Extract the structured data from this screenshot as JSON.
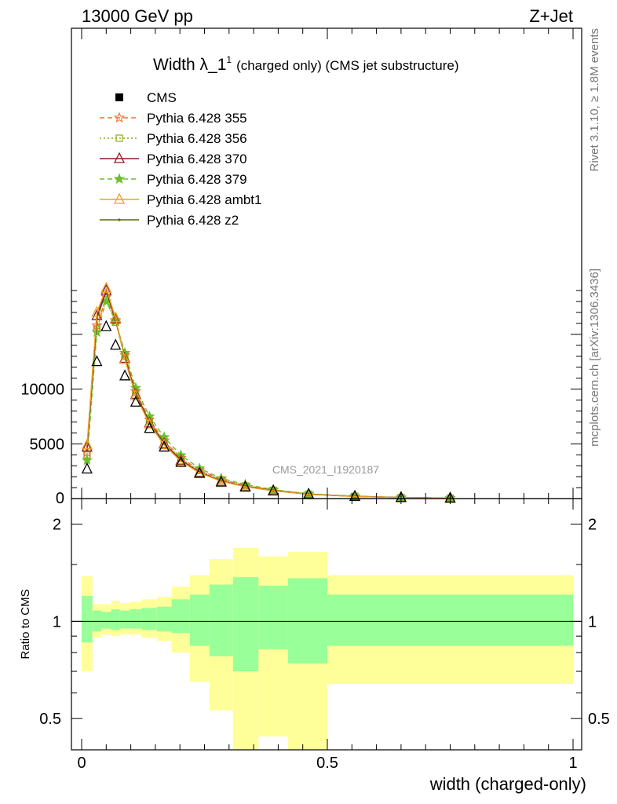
{
  "header": {
    "left": "13000 GeV pp",
    "right": "Z+Jet",
    "side_top": "Rivet 3.1.10, ≥ 1.8M events",
    "side_bottom": "mcplots.cern.ch [arXiv:1306.3436]"
  },
  "title": {
    "main": "Width λ_1",
    "sup": "1",
    "sub": "(charged only) (CMS jet substructure)"
  },
  "watermark": "CMS_2021_I1920187",
  "colors": {
    "band_inner": "#99ff99",
    "band_outer": "#ffff99",
    "cms": "#000000",
    "p355": "#ff6a2a",
    "p356": "#8fa81a",
    "p370": "#8b1a2a",
    "p379": "#6abf2a",
    "ambt1": "#f0a020",
    "z2": "#5a6a10"
  },
  "chart_data": {
    "type": "line",
    "xlabel": "width (charged-only)",
    "ylabel_ratio": "Ratio to CMS",
    "xlim": [
      0,
      1
    ],
    "ylim_main": [
      0,
      19000
    ],
    "ylim_ratio": [
      0.4,
      2.4
    ],
    "x_ticks": [
      "0",
      "0.5",
      "1"
    ],
    "y_ticks_main": [
      "5000",
      "10000",
      "0"
    ],
    "y_ticks_ratio": [
      "0.5",
      "1",
      "2"
    ],
    "x": [
      0.011,
      0.031,
      0.05,
      0.069,
      0.088,
      0.11,
      0.138,
      0.168,
      0.202,
      0.24,
      0.284,
      0.333,
      0.39,
      0.462,
      0.556,
      0.65,
      0.75
    ],
    "series": [
      {
        "name": "CMS",
        "key": "cms",
        "marker": "triangle-open",
        "dash": "none",
        "values": [
          2700,
          12500,
          15700,
          14000,
          11200,
          8800,
          6400,
          4700,
          3300,
          2300,
          1500,
          1050,
          700,
          400,
          200,
          90,
          40
        ]
      },
      {
        "name": "Pythia 6.428 355",
        "key": "p355",
        "marker": "star-open",
        "dash": "6,4",
        "values": [
          4200,
          15800,
          18400,
          16300,
          13100,
          9800,
          7200,
          5300,
          3700,
          2600,
          1750,
          1200,
          780,
          420,
          210,
          100,
          45
        ]
      },
      {
        "name": "Pythia 6.428 356",
        "key": "p356",
        "marker": "square-open",
        "dash": "2,3",
        "values": [
          4000,
          15500,
          18200,
          16100,
          13000,
          9700,
          7100,
          5200,
          3650,
          2550,
          1700,
          1150,
          760,
          410,
          205,
          95,
          45
        ]
      },
      {
        "name": "Pythia 6.428 370",
        "key": "p370",
        "marker": "triangle-open",
        "dash": "none",
        "values": [
          4700,
          16700,
          19000,
          16400,
          12800,
          9500,
          6900,
          5000,
          3500,
          2400,
          1600,
          1100,
          720,
          390,
          195,
          92,
          42
        ]
      },
      {
        "name": "Pythia 6.428 379",
        "key": "p379",
        "marker": "star-fill",
        "dash": "6,4",
        "values": [
          3500,
          15200,
          18000,
          16200,
          13300,
          10100,
          7500,
          5600,
          3950,
          2750,
          1850,
          1280,
          820,
          440,
          220,
          105,
          48
        ]
      },
      {
        "name": "Pythia 6.428 ambt1",
        "key": "ambt1",
        "marker": "triangle-open",
        "dash": "none",
        "values": [
          4900,
          17000,
          19200,
          16500,
          12700,
          9400,
          6800,
          4900,
          3400,
          2350,
          1580,
          1080,
          710,
          385,
          190,
          90,
          42
        ]
      },
      {
        "name": "Pythia 6.428 z2",
        "key": "z2",
        "marker": "dot",
        "dash": "none",
        "values": [
          4500,
          16400,
          18900,
          16300,
          12900,
          9600,
          7000,
          5050,
          3520,
          2420,
          1620,
          1110,
          730,
          395,
          198,
          93,
          43
        ]
      }
    ],
    "ratio_bands": {
      "edges": [
        0,
        0.022,
        0.04,
        0.06,
        0.078,
        0.098,
        0.122,
        0.153,
        0.183,
        0.22,
        0.26,
        0.308,
        0.36,
        0.42,
        0.5,
        1.0
      ],
      "inner_low": [
        0.86,
        0.93,
        0.95,
        0.94,
        0.95,
        0.95,
        0.94,
        0.93,
        0.92,
        0.84,
        0.78,
        0.7,
        0.82,
        0.74,
        0.84
      ],
      "inner_high": [
        1.2,
        1.08,
        1.07,
        1.09,
        1.08,
        1.09,
        1.1,
        1.11,
        1.17,
        1.21,
        1.3,
        1.37,
        1.29,
        1.36,
        1.21
      ],
      "outer_low": [
        0.7,
        0.89,
        0.91,
        0.9,
        0.91,
        0.91,
        0.89,
        0.87,
        0.8,
        0.65,
        0.53,
        0.4,
        0.44,
        0.4,
        0.64
      ],
      "outer_high": [
        1.38,
        1.13,
        1.13,
        1.16,
        1.14,
        1.15,
        1.17,
        1.19,
        1.28,
        1.39,
        1.56,
        1.69,
        1.59,
        1.64,
        1.39
      ]
    }
  }
}
